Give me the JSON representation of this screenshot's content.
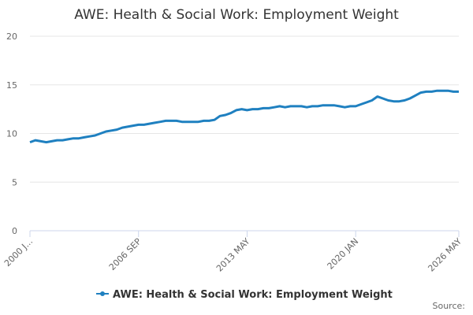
{
  "chart_data": {
    "type": "line",
    "title": "AWE: Health & Social Work: Employment Weight",
    "source": "Source:",
    "categories": [
      "2000 J...",
      null,
      null,
      null,
      null,
      null,
      null,
      null,
      null,
      null,
      null,
      null,
      null,
      null,
      null,
      null,
      null,
      null,
      null,
      null,
      "2006 SEP",
      null,
      null,
      null,
      null,
      null,
      null,
      null,
      null,
      null,
      null,
      null,
      null,
      null,
      null,
      null,
      null,
      null,
      null,
      null,
      "2013 MAY",
      null,
      null,
      null,
      null,
      null,
      null,
      null,
      null,
      null,
      null,
      null,
      null,
      null,
      null,
      null,
      null,
      null,
      null,
      null,
      "2020 JAN",
      null,
      null,
      null,
      null,
      null,
      null,
      null,
      null,
      null,
      null,
      null,
      null,
      null,
      null,
      null,
      null,
      null,
      null,
      "2026 MAY"
    ],
    "series": [
      {
        "name": "AWE: Health & Social Work: Employment Weight",
        "color": "#1f80c0",
        "values": [
          9.1,
          9.3,
          9.2,
          9.1,
          9.2,
          9.3,
          9.3,
          9.4,
          9.5,
          9.5,
          9.6,
          9.7,
          9.8,
          10.0,
          10.2,
          10.3,
          10.4,
          10.6,
          10.7,
          10.8,
          10.9,
          10.9,
          11.0,
          11.1,
          11.2,
          11.3,
          11.3,
          11.3,
          11.2,
          11.2,
          11.2,
          11.2,
          11.3,
          11.3,
          11.4,
          11.8,
          11.9,
          12.1,
          12.4,
          12.5,
          12.4,
          12.5,
          12.5,
          12.6,
          12.6,
          12.7,
          12.8,
          12.7,
          12.8,
          12.8,
          12.8,
          12.7,
          12.8,
          12.8,
          12.9,
          12.9,
          12.9,
          12.8,
          12.7,
          12.8,
          12.8,
          13.0,
          13.2,
          13.4,
          13.8,
          13.6,
          13.4,
          13.3,
          13.3,
          13.4,
          13.6,
          13.9,
          14.2,
          14.3,
          14.3,
          14.4,
          14.4,
          14.4,
          14.3,
          14.3
        ]
      }
    ],
    "ylim": [
      0,
      20
    ],
    "yticks": [
      0,
      5,
      10,
      15,
      20
    ],
    "grid": true
  }
}
